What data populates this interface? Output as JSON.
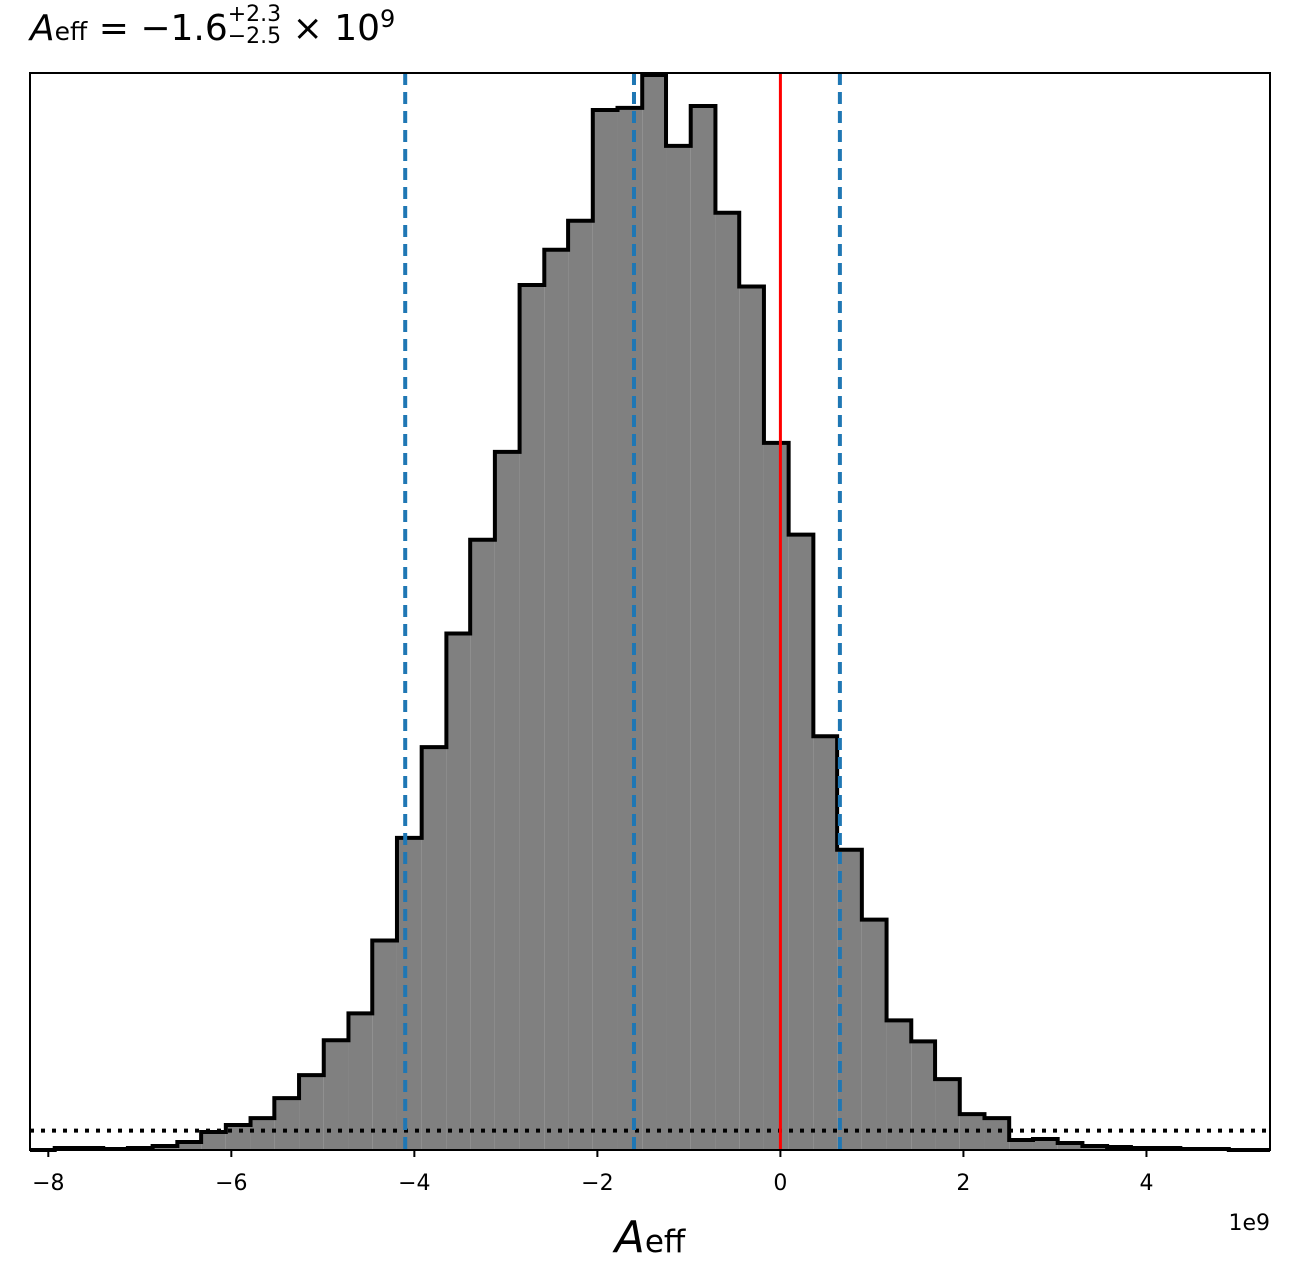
{
  "chart_data": {
    "type": "histogram",
    "title": {
      "symbol": "A",
      "subscript": "eff",
      "equals": "=",
      "median": "−1.6",
      "plus": "+2.3",
      "minus": "−2.5",
      "times": "× 10",
      "exponent": "9"
    },
    "xlabel": {
      "symbol": "A",
      "subscript": "eff"
    },
    "offset_label": "1e9",
    "xlim": [
      -8.2,
      5.35
    ],
    "ylim": [
      0,
      1
    ],
    "ticks": [
      -8,
      -6,
      -4,
      -2,
      0,
      2,
      4
    ],
    "tick_labels": [
      "−8",
      "−6",
      "−4",
      "−2",
      "0",
      "2",
      "4"
    ],
    "bin_edges": [
      -8.2,
      -7.93,
      -7.66,
      -7.4,
      -7.13,
      -6.86,
      -6.59,
      -6.33,
      -6.06,
      -5.79,
      -5.53,
      -5.26,
      -4.99,
      -4.72,
      -4.46,
      -4.19,
      -3.92,
      -3.65,
      -3.39,
      -3.12,
      -2.85,
      -2.58,
      -2.32,
      -2.05,
      -1.78,
      -1.51,
      -1.25,
      -0.98,
      -0.71,
      -0.45,
      -0.18,
      0.09,
      0.36,
      0.62,
      0.89,
      1.16,
      1.43,
      1.69,
      1.96,
      2.23,
      2.5,
      2.76,
      3.03,
      3.3,
      3.57,
      3.83,
      4.1,
      4.37,
      4.64,
      4.9,
      5.17,
      5.35
    ],
    "counts": [
      0.0,
      0.0019,
      0.0019,
      0.0009,
      0.0019,
      0.0037,
      0.0074,
      0.0167,
      0.0232,
      0.0297,
      0.0482,
      0.0696,
      0.1021,
      0.1271,
      0.1949,
      0.2903,
      0.3748,
      0.4805,
      0.5677,
      0.6494,
      0.8047,
      0.8375,
      0.8644,
      0.9675,
      0.9694,
      1.0,
      0.9341,
      0.9712,
      0.8719,
      0.8033,
      0.6578,
      0.5724,
      0.3849,
      0.2793,
      0.2143,
      0.1206,
      0.1011,
      0.0659,
      0.0334,
      0.0297,
      0.0093,
      0.0102,
      0.0065,
      0.0037,
      0.0028,
      0.0019,
      0.0019,
      0.0009,
      0.0009,
      0.0,
      0.0
    ],
    "fill_color": "#808080",
    "edge_color": "#000000",
    "vlines": [
      {
        "x": -4.1,
        "style": "dashed",
        "color": "#1f77b4"
      },
      {
        "x": -1.6,
        "style": "dashed",
        "color": "#1f77b4"
      },
      {
        "x": 0.65,
        "style": "dashed",
        "color": "#1f77b4"
      },
      {
        "x": 0.0,
        "style": "solid",
        "color": "#ff0000"
      }
    ],
    "prior_line": {
      "style": "dotted",
      "color": "#000000",
      "y": 0.018
    },
    "grid": false,
    "yticks_shown": false
  }
}
